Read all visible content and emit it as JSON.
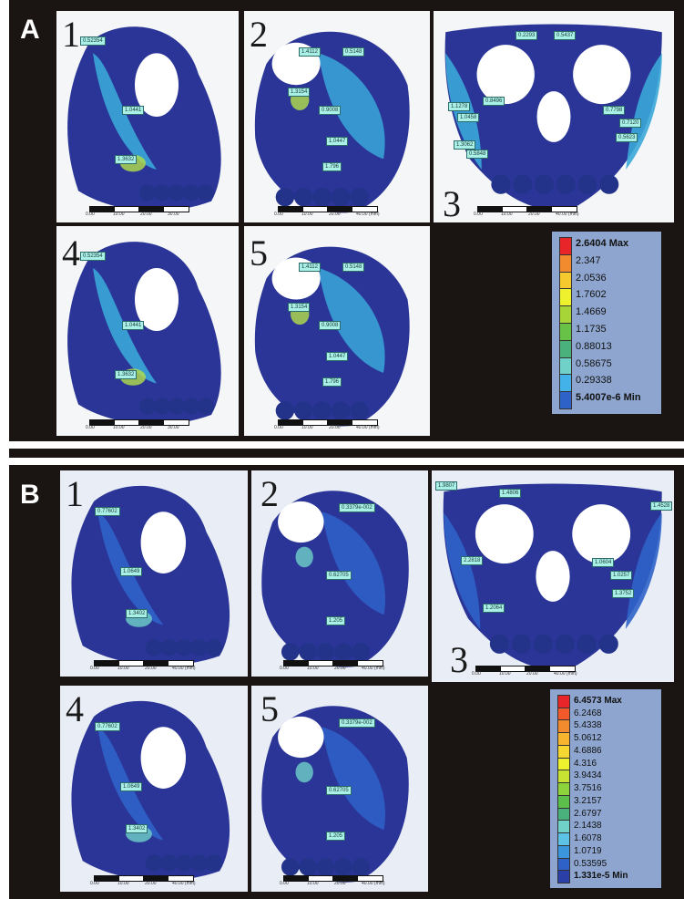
{
  "panels": {
    "A": {
      "letter": "A",
      "tiles": [
        {
          "num": "1",
          "probes": [
            "0.52354",
            "1.0441",
            "1.3632"
          ],
          "scale": [
            "0.00",
            "10.00",
            "20.00",
            "30.00"
          ]
        },
        {
          "num": "2",
          "probes": [
            "1.4112",
            "0.5148",
            "1.3154",
            "0.9008",
            "1.0447",
            "1.796"
          ],
          "scale": [
            "0.00",
            "10.00",
            "20.00",
            "40.00 (mm)"
          ]
        },
        {
          "num": "3",
          "probes": [
            "0.2293",
            "0.5437",
            "1.1278",
            "1.0458",
            "0.8496",
            "0.7798",
            "0.7120",
            "0.5623",
            "1.3062",
            "0.5848"
          ],
          "scale": [
            "0.00",
            "10.00",
            "20.00",
            "40.00 (mm)"
          ]
        },
        {
          "num": "4",
          "probes": [
            "0.52354",
            "1.0441",
            "1.3632"
          ],
          "scale": [
            "0.00",
            "10.00",
            "20.00",
            "30.00"
          ]
        },
        {
          "num": "5",
          "probes": [
            "1.4112",
            "0.5148",
            "1.3154",
            "0.9008",
            "1.0447",
            "1.796"
          ],
          "scale": [
            "0.00",
            "10.00",
            "20.00",
            "40.00 (mm)"
          ]
        }
      ],
      "legend": {
        "max": "2.6404 Max",
        "min": "5.4007e-6 Min",
        "levels": [
          "2.347",
          "2.0536",
          "1.7602",
          "1.4669",
          "1.1735",
          "0.88013",
          "0.58675",
          "0.29338"
        ],
        "colors": [
          "#e8262a",
          "#f28a2e",
          "#f6c92f",
          "#eef12d",
          "#a7d538",
          "#67c247",
          "#4ab17c",
          "#6fd1c8",
          "#42b2e8",
          "#2f62c9"
        ]
      }
    },
    "B": {
      "letter": "B",
      "tiles": [
        {
          "num": "1",
          "probes": [
            "0.77602",
            "1.0649",
            "1.3402"
          ],
          "scale": [
            "0.00",
            "10.00",
            "20.00",
            "40.00 (mm)"
          ]
        },
        {
          "num": "2",
          "probes": [
            "0.3379e-002",
            "0.62705",
            "1.205"
          ],
          "scale": [
            "0.00",
            "10.00",
            "20.00",
            "40.00 (mm)"
          ]
        },
        {
          "num": "3",
          "probes": [
            "1.9807",
            "1.4806",
            "1.4528",
            "2.2818",
            "1.0604",
            "1.0257",
            "1.3752",
            "1.2064"
          ],
          "scale": [
            "0.00",
            "10.00",
            "20.00",
            "40.00 (mm)"
          ]
        },
        {
          "num": "4",
          "probes": [
            "0.77602",
            "1.0649",
            "1.3402"
          ],
          "scale": [
            "0.00",
            "10.00",
            "20.00",
            "40.00 (mm)"
          ]
        },
        {
          "num": "5",
          "probes": [
            "0.3379e-002",
            "0.62705",
            "1.205"
          ],
          "scale": [
            "0.00",
            "10.00",
            "20.00",
            "40.00 (mm)"
          ]
        }
      ],
      "legend": {
        "max": "6.4573 Max",
        "min": "1.331e-5 Min",
        "levels": [
          "6.2468",
          "5.4338",
          "5.0612",
          "4.6886",
          "4.316",
          "3.9434",
          "3.7516",
          "3.2157",
          "2.6797",
          "2.1438",
          "1.6078",
          "1.0719",
          "0.53595"
        ],
        "colors": [
          "#e8262a",
          "#f25a2c",
          "#f28a2e",
          "#f6b42f",
          "#f6d630",
          "#eef12d",
          "#c7e233",
          "#8ed23c",
          "#5cbf4c",
          "#4ab17c",
          "#6fd1c8",
          "#5cc3e6",
          "#3a95dd",
          "#2f62c9",
          "#2a3fa8"
        ]
      }
    }
  }
}
